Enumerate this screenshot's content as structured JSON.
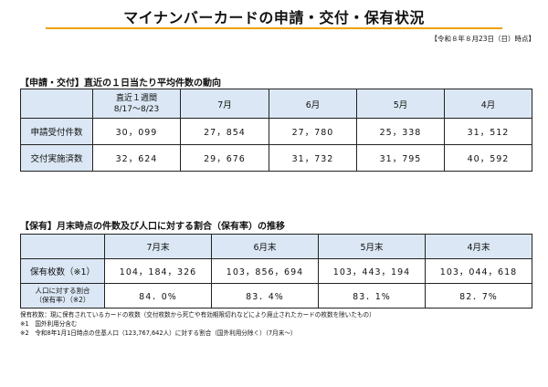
{
  "header": {
    "title": "マイナンバーカードの申請・交付・保有状況",
    "date_stamp": "【令和８年８月23日（日）時点】"
  },
  "section1": {
    "title": "【申請・交付】直近の１日当たり平均件数の動向",
    "headers": [
      "直近１週間",
      "8/17〜8/23",
      "7月",
      "6月",
      "5月",
      "4月"
    ],
    "rows": [
      {
        "label": "申請受付件数",
        "values": [
          "30，099",
          "27，854",
          "27，780",
          "25，338",
          "31，512"
        ]
      },
      {
        "label": "交付実施済数",
        "values": [
          "32，624",
          "29，676",
          "31，732",
          "31，795",
          "40，592"
        ]
      }
    ]
  },
  "section2": {
    "title": "【保有】月末時点の件数及び人口に対する割合（保有率）の推移",
    "headers": [
      "7月末",
      "6月末",
      "5月末",
      "4月末"
    ],
    "row1": {
      "label": "保有枚数（※1）",
      "values": [
        "104，184，326",
        "103，856，694",
        "103，443，194",
        "103，044，618"
      ]
    },
    "row2": {
      "label_line1": "人口に対する割合",
      "label_line2": "（保有率）（※2）",
      "values": [
        "84．0%",
        "83．4%",
        "83．1%",
        "82．7%"
      ]
    }
  },
  "notes": [
    "保有枚数：現に保有されているカードの枚数（交付枚数から死亡や有効期限切れなどにより廃止されたカードの枚数を除いたもの）",
    "※1　国外利用分含む",
    "※2　令和8年1月1日時点の住基人口（123,767,642人）に対する割合（国外利用分除く）（7月末〜）"
  ],
  "colors": {
    "title_rule": "#f0a000",
    "header_fill": "#dbe7f4"
  }
}
